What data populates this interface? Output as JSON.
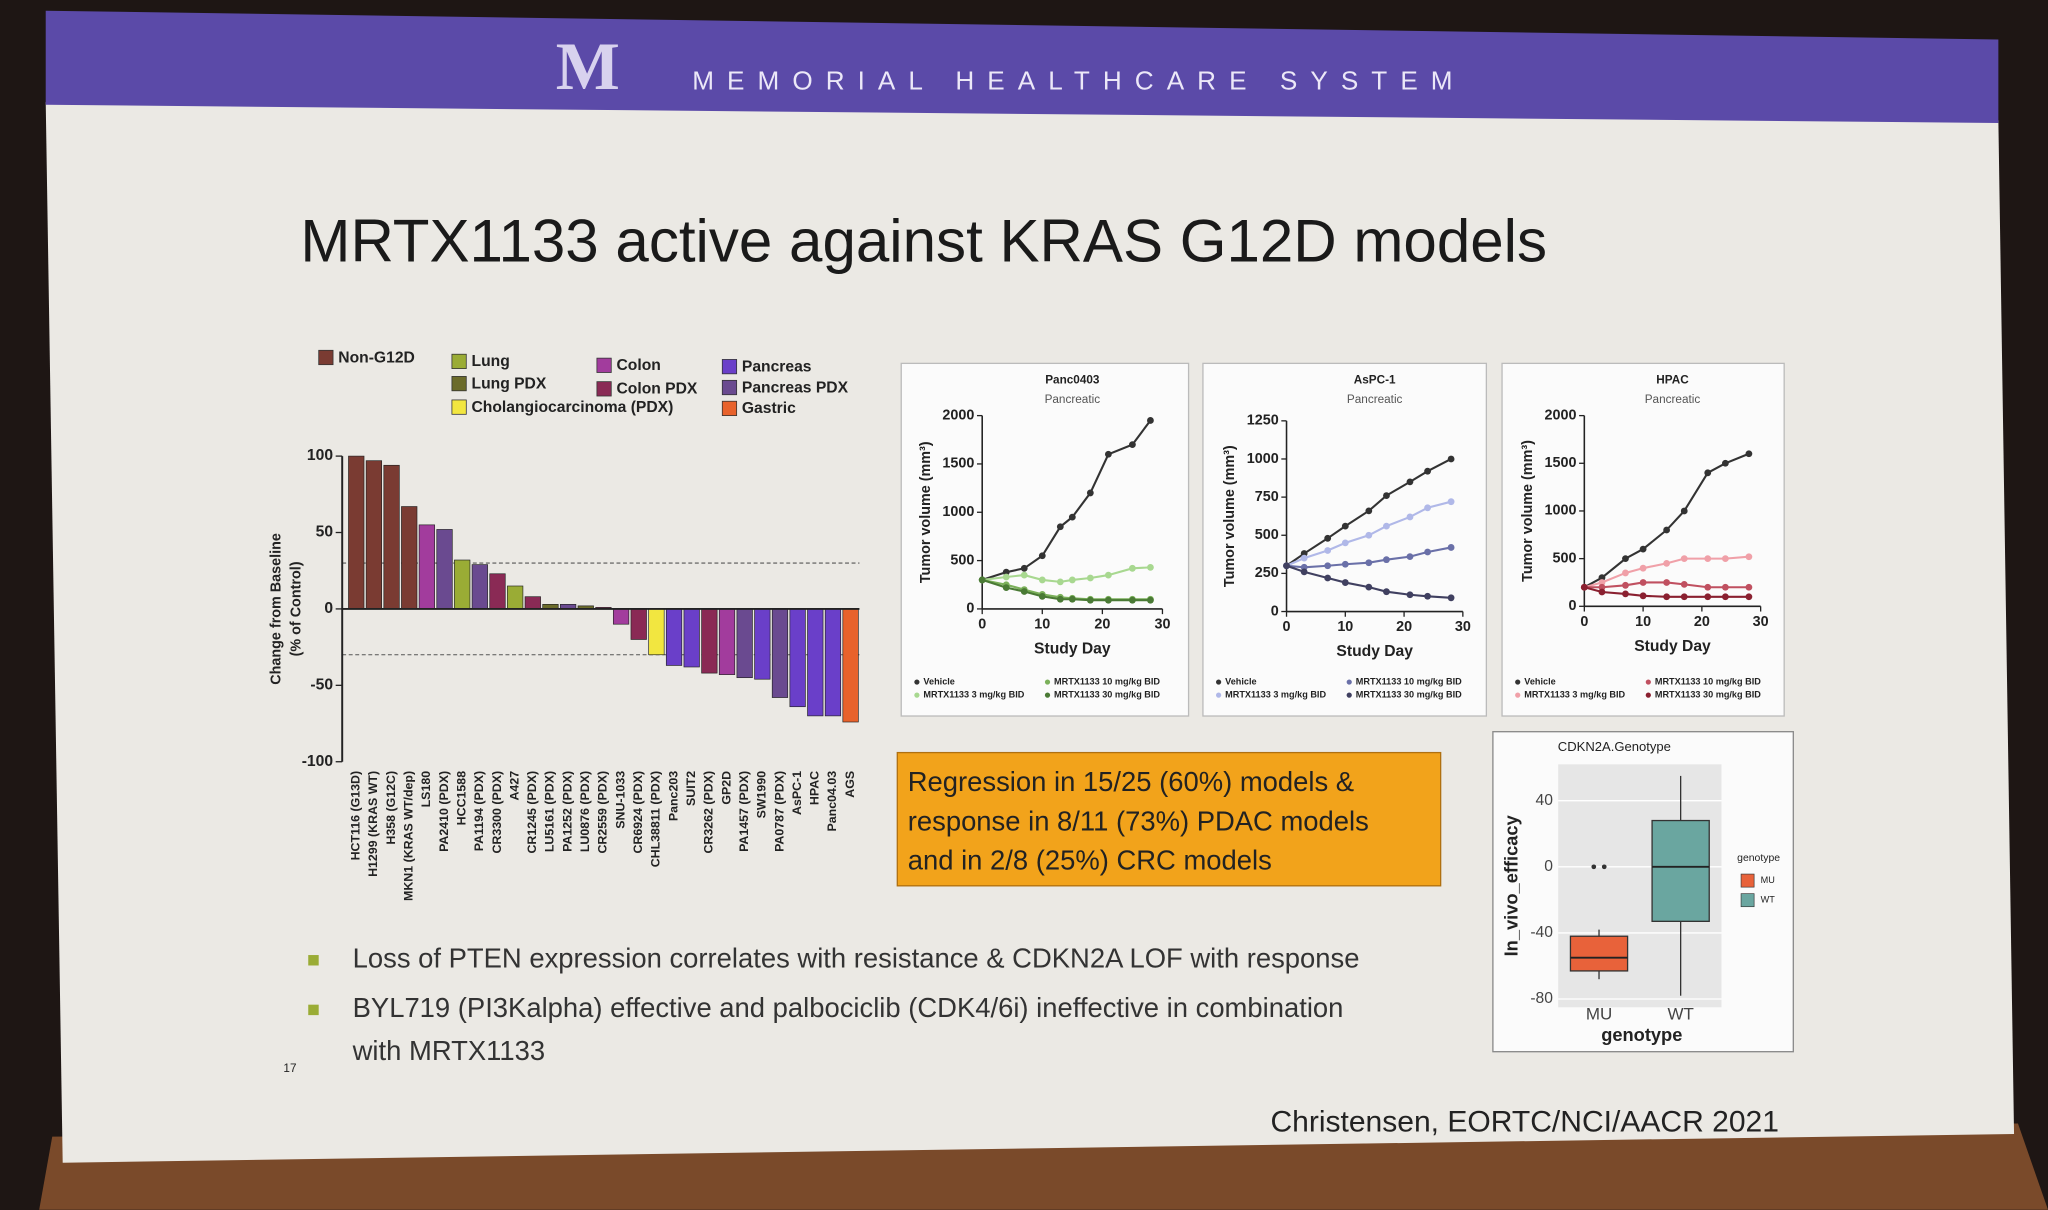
{
  "header": {
    "logo": "M",
    "name": "MEMORIAL HEALTHCARE SYSTEM"
  },
  "title": "MRTX1133 active against KRAS G12D models",
  "callout": [
    "Regression in 15/25 (60%) models &",
    "response in 8/11 (73%) PDAC models",
    "and in 2/8 (25%) CRC models"
  ],
  "bullets": [
    [
      "Loss of PTEN expression correlates with resistance & CDKN2A LOF with response"
    ],
    [
      "BYL719 (PI3Kalpha) effective and palbociclib (CDK4/6i) ineffective in combination",
      "with MRTX1133"
    ]
  ],
  "page_number": "17",
  "citation": "Christensen, EORTC/NCI/AACR 2021",
  "chart_data": [
    {
      "type": "bar",
      "ylabel": [
        "Change from Baseline",
        "(% of Control)"
      ],
      "legend": [
        {
          "name": "Non-G12D",
          "color": "#7a3b32"
        },
        {
          "name": "Lung",
          "color": "#9aac35"
        },
        {
          "name": "Lung PDX",
          "color": "#6b6b2a"
        },
        {
          "name": "Cholangiocarcinoma (PDX)",
          "color": "#f2e640"
        },
        {
          "name": "Colon",
          "color": "#a23c9d"
        },
        {
          "name": "Colon PDX",
          "color": "#8a2a55"
        },
        {
          "name": "Pancreas",
          "color": "#6a3fc9"
        },
        {
          "name": "Pancreas PDX",
          "color": "#6a4a90"
        },
        {
          "name": "Gastric",
          "color": "#e8622b"
        }
      ],
      "categories": [
        "HCT116 (G13D)",
        "H1299 (KRAS WT)",
        "H358 (G12C)",
        "MKN1 (KRAS WT/dep)",
        "LS180",
        "PA2410 (PDX)",
        "HCC1588",
        "PA1194 (PDX)",
        "CR3300 (PDX)",
        "A427",
        "CR1245 (PDX)",
        "LU5161 (PDX)",
        "PA1252 (PDX)",
        "LU0876 (PDX)",
        "CR2559 (PDX)",
        "SNU-1033",
        "CR6924 (PDX)",
        "CHL38811 (PDX)",
        "Panc203",
        "SUIT2",
        "CR3262 (PDX)",
        "GP2D",
        "PA1457 (PDX)",
        "SW1990",
        "PA0787 (PDX)",
        "AsPC-1",
        "HPAC",
        "Panc04.03",
        "AGS"
      ],
      "values": [
        100,
        97,
        94,
        67,
        55,
        52,
        32,
        29,
        23,
        15,
        8,
        3,
        3,
        2,
        1,
        -10,
        -20,
        -30,
        -37,
        -38,
        -42,
        -43,
        -45,
        -46,
        -58,
        -64,
        -70,
        -70,
        -74
      ],
      "colors": [
        "#7a3b32",
        "#7a3b32",
        "#7a3b32",
        "#7a3b32",
        "#a23c9d",
        "#6a4a90",
        "#9aac35",
        "#6a4a90",
        "#8a2a55",
        "#9aac35",
        "#8a2a55",
        "#6b6b2a",
        "#6a4a90",
        "#6b6b2a",
        "#8a2a55",
        "#a23c9d",
        "#8a2a55",
        "#f2e640",
        "#6a3fc9",
        "#6a3fc9",
        "#8a2a55",
        "#a23c9d",
        "#6a4a90",
        "#6a3fc9",
        "#6a4a90",
        "#6a3fc9",
        "#6a3fc9",
        "#6a3fc9",
        "#e8622b"
      ],
      "ylim": [
        -100,
        100
      ],
      "yticks": [
        -100,
        -50,
        0,
        50,
        100
      ],
      "reference_lines": [
        30,
        -30
      ]
    },
    {
      "type": "line",
      "title": "Panc0403",
      "subtitle": "Pancreatic",
      "xlabel": "Study Day",
      "ylabel": "Tumor volume (mm³)",
      "x": [
        0,
        4,
        7,
        10,
        13,
        15,
        18,
        21,
        25,
        28
      ],
      "xlim": [
        0,
        30
      ],
      "xticks": [
        0,
        10,
        20,
        30
      ],
      "ylim": [
        0,
        2000
      ],
      "yticks": [
        0,
        500,
        1000,
        1500,
        2000
      ],
      "series": [
        {
          "name": "Vehicle",
          "color": "#333333",
          "values": [
            300,
            380,
            420,
            550,
            850,
            950,
            1200,
            1600,
            1700,
            1950
          ]
        },
        {
          "name": "MRTX1133 3 mg/kg BID",
          "color": "#a8d890",
          "values": [
            300,
            330,
            350,
            300,
            280,
            300,
            320,
            350,
            420,
            430
          ]
        },
        {
          "name": "MRTX1133 10 mg/kg BID",
          "color": "#7bb05a",
          "values": [
            300,
            250,
            200,
            150,
            120,
            110,
            100,
            100,
            100,
            100
          ]
        },
        {
          "name": "MRTX1133 30 mg/kg BID",
          "color": "#4a7a35",
          "values": [
            300,
            220,
            180,
            130,
            100,
            100,
            90,
            90,
            90,
            90
          ]
        }
      ]
    },
    {
      "type": "line",
      "title": "AsPC-1",
      "subtitle": "Pancreatic",
      "xlabel": "Study Day",
      "ylabel": "Tumor volume (mm³)",
      "x": [
        0,
        3,
        7,
        10,
        14,
        17,
        21,
        24,
        28
      ],
      "xlim": [
        0,
        30
      ],
      "xticks": [
        0,
        10,
        20,
        30
      ],
      "ylim": [
        0,
        1250
      ],
      "yticks": [
        0,
        250,
        500,
        750,
        1000,
        1250
      ],
      "series": [
        {
          "name": "Vehicle",
          "color": "#333333",
          "values": [
            300,
            380,
            480,
            560,
            660,
            760,
            850,
            920,
            1000
          ]
        },
        {
          "name": "MRTX1133 3 mg/kg BID",
          "color": "#b0b8e8",
          "values": [
            300,
            350,
            400,
            450,
            500,
            560,
            620,
            680,
            720
          ]
        },
        {
          "name": "MRTX1133 10 mg/kg BID",
          "color": "#6a70a8",
          "values": [
            300,
            290,
            300,
            310,
            320,
            340,
            360,
            390,
            420
          ]
        },
        {
          "name": "MRTX1133 30 mg/kg BID",
          "color": "#404060",
          "values": [
            300,
            260,
            220,
            190,
            160,
            130,
            110,
            100,
            90
          ]
        }
      ]
    },
    {
      "type": "line",
      "title": "HPAC",
      "subtitle": "Pancreatic",
      "xlabel": "Study Day",
      "ylabel": "Tumor volume (mm³)",
      "x": [
        0,
        3,
        7,
        10,
        14,
        17,
        21,
        24,
        28
      ],
      "xlim": [
        0,
        30
      ],
      "xticks": [
        0,
        10,
        20,
        30
      ],
      "ylim": [
        0,
        2000
      ],
      "yticks": [
        0,
        500,
        1000,
        1500,
        2000
      ],
      "series": [
        {
          "name": "Vehicle",
          "color": "#333333",
          "values": [
            200,
            300,
            500,
            600,
            800,
            1000,
            1400,
            1500,
            1600
          ]
        },
        {
          "name": "MRTX1133 3 mg/kg BID",
          "color": "#f0a0a8",
          "values": [
            200,
            250,
            350,
            400,
            450,
            500,
            500,
            500,
            520
          ]
        },
        {
          "name": "MRTX1133 10 mg/kg BID",
          "color": "#c05060",
          "values": [
            200,
            200,
            220,
            250,
            250,
            230,
            200,
            200,
            200
          ]
        },
        {
          "name": "MRTX1133 30 mg/kg BID",
          "color": "#8a2030",
          "values": [
            200,
            150,
            130,
            110,
            100,
            100,
            100,
            100,
            100
          ]
        }
      ]
    },
    {
      "type": "box",
      "title": "CDKN2A.Genotype",
      "xlabel": "genotype",
      "ylabel": "In_vivo_efficacy",
      "legend_title": "genotype",
      "categories": [
        "MU",
        "WT"
      ],
      "colors": [
        "#e8623a",
        "#6aa6a0"
      ],
      "low": [
        -68,
        -78
      ],
      "q1": [
        -63,
        -33
      ],
      "median": [
        -55,
        0
      ],
      "q3": [
        -42,
        28
      ],
      "high": [
        -38,
        55
      ],
      "outliers": [
        [
          0,
          0
        ],
        []
      ],
      "ylim": [
        -85,
        62
      ],
      "yticks": [
        -80,
        -40,
        0,
        40
      ]
    }
  ]
}
